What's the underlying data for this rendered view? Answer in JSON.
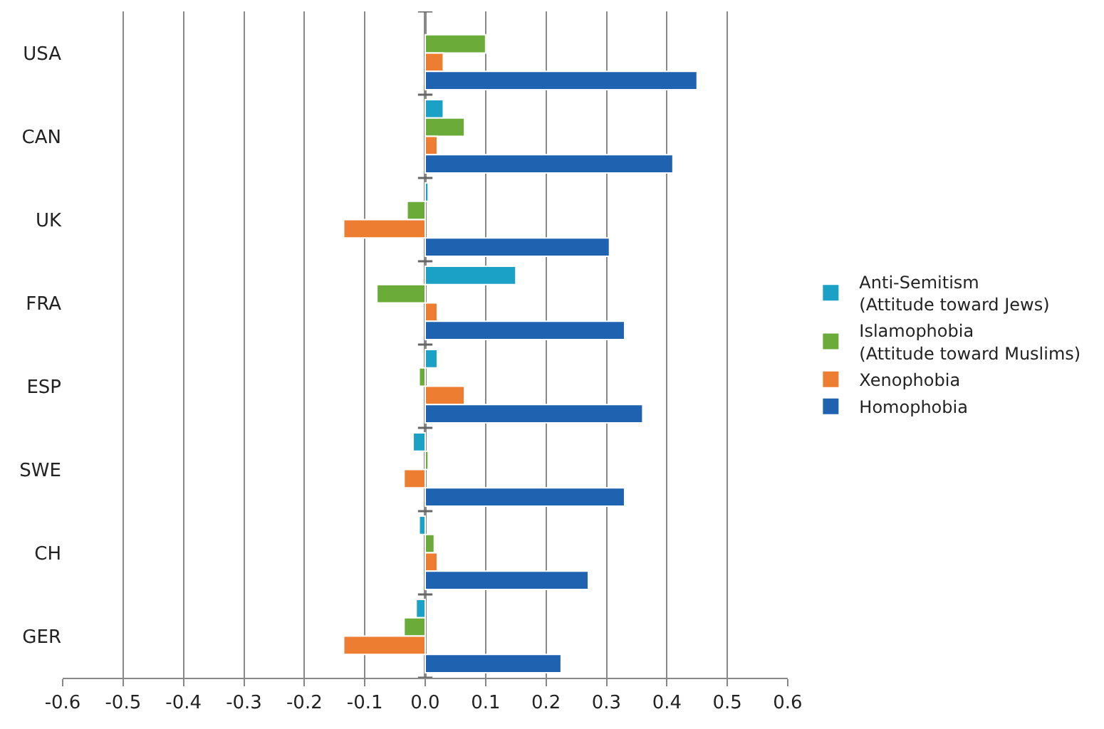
{
  "chart_data": {
    "type": "bar",
    "orientation": "horizontal",
    "categories": [
      "USA",
      "CAN",
      "UK",
      "FRA",
      "ESP",
      "SWE",
      "CH",
      "GER"
    ],
    "series": [
      {
        "name": "Anti-Semitism\n(Attitude toward Jews)",
        "color": "#1ba1c6",
        "values": [
          null,
          0.03,
          0.005,
          0.15,
          0.02,
          -0.02,
          -0.01,
          -0.015
        ]
      },
      {
        "name": "Islamophobia\n(Attitude toward Muslims)",
        "color": "#6aab3a",
        "values": [
          0.1,
          0.065,
          -0.03,
          -0.08,
          -0.01,
          0.005,
          0.015,
          -0.035
        ]
      },
      {
        "name": "Xenophobia",
        "color": "#ed7d31",
        "values": [
          0.03,
          0.02,
          -0.135,
          0.02,
          0.065,
          -0.035,
          0.02,
          -0.135
        ]
      },
      {
        "name": "Homophobia",
        "color": "#1e62b0",
        "values": [
          0.45,
          0.41,
          0.305,
          0.33,
          0.36,
          0.33,
          0.27,
          0.225
        ]
      }
    ],
    "xlim": [
      -0.6,
      0.6
    ],
    "xticks": [
      {
        "value": -0.6,
        "label": "-0.6"
      },
      {
        "value": -0.5,
        "label": "-0.5"
      },
      {
        "value": -0.4,
        "label": "-0.4"
      },
      {
        "value": -0.3,
        "label": "-0.3"
      },
      {
        "value": -0.2,
        "label": "-0.2"
      },
      {
        "value": -0.1,
        "label": "-0.1"
      },
      {
        "value": 0,
        "label": "0.0"
      },
      {
        "value": 0.1,
        "label": "0.1"
      },
      {
        "value": 0.2,
        "label": "0.2"
      },
      {
        "value": 0.3,
        "label": "0.3"
      },
      {
        "value": 0.4,
        "label": "0.4"
      },
      {
        "value": 0.5,
        "label": "0.5"
      },
      {
        "value": 0.6,
        "label": "0.6"
      }
    ],
    "grid": "x",
    "legend": "right"
  }
}
